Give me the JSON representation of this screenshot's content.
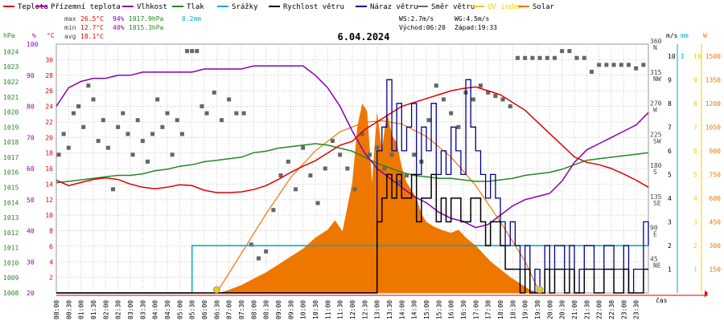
{
  "legend": [
    {
      "key": "teplota",
      "label": "Teplota",
      "color": "#dd0000"
    },
    {
      "key": "prizemni",
      "label": "Přízemní teplota",
      "color": "#bb00bb"
    },
    {
      "key": "vlhkost",
      "label": "Vlhkost",
      "color": "#8800aa"
    },
    {
      "key": "tlak",
      "label": "Tlak",
      "color": "#228822"
    },
    {
      "key": "srazky",
      "label": "Srážky",
      "color": "#00aacc"
    },
    {
      "key": "rychlost",
      "label": "Rychlost větru",
      "color": "#000000"
    },
    {
      "key": "naraz",
      "label": "Náraz větru",
      "color": "#000088"
    },
    {
      "key": "smer",
      "label": "Směr větru",
      "color": "#666666"
    },
    {
      "key": "uv",
      "label": "UV index",
      "color": "#e8d000"
    },
    {
      "key": "solar",
      "label": "Solar",
      "color": "#ee7700"
    }
  ],
  "stats": {
    "max_label": "max",
    "max_temp": "26.5°C",
    "max_hum": "94%",
    "max_press": "1017.9hPa",
    "max_rain": "0.2mm",
    "min_label": "min",
    "min_temp": "12.7°C",
    "min_hum": "40%",
    "min_press": "1015.3hPa",
    "avg_label": "avg",
    "avg_temp": "18.1°C"
  },
  "wind_info": {
    "ws": "WS:2.7m/s",
    "wg": "WG:4.5m/s",
    "sunrise": "Východ:06:20",
    "sunset": "Západ:19:33"
  },
  "title": "6.04.2024",
  "colors": {
    "temp": "#dd0000",
    "humidity": "#8800aa",
    "pressure": "#228822",
    "rain": "#00aacc",
    "wind": "#000000",
    "gust": "#000088",
    "direction": "#666666",
    "uv": "#e8d000",
    "solar": "#ee7700",
    "grid": "#c8c8c8",
    "axis": "#dd0000"
  },
  "chart_data": {
    "type": "line",
    "title": "6.04.2024",
    "x_time_labels": [
      "00:00",
      "00:30",
      "01:00",
      "01:30",
      "02:00",
      "02:30",
      "03:00",
      "03:30",
      "04:00",
      "04:30",
      "05:00",
      "05:30",
      "06:00",
      "06:30",
      "07:00",
      "07:30",
      "08:00",
      "08:30",
      "09:00",
      "09:30",
      "10:00",
      "10:30",
      "11:00",
      "11:30",
      "12:00",
      "12:30",
      "13:00",
      "13:30",
      "14:00",
      "14:30",
      "15:00",
      "15:30",
      "16:00",
      "16:30",
      "17:00",
      "17:30",
      "18:00",
      "18:30",
      "19:00",
      "19:30",
      "20:00",
      "20:30",
      "21:00",
      "21:30",
      "22:00",
      "22:30",
      "23:00",
      "23:30"
    ],
    "xlabel": "čas",
    "axes": {
      "pressure": {
        "unit": "hPa",
        "ticks": [
          "1008",
          "1009",
          "1010",
          "1011",
          "1012",
          "1013",
          "1014",
          "1015",
          "1016",
          "1017",
          "1018",
          "1019",
          "1020",
          "1021",
          "1022",
          "1023",
          "1024"
        ],
        "range": [
          1008,
          1024.5
        ]
      },
      "humidity": {
        "unit": "%",
        "ticks": [
          "20",
          "30",
          "40",
          "50",
          "60",
          "70",
          "80",
          "90",
          "100"
        ],
        "range": [
          20,
          100
        ]
      },
      "temperature": {
        "unit": "°C",
        "ticks": [
          "2",
          "4",
          "6",
          "8",
          "10",
          "12",
          "14",
          "16",
          "18",
          "20",
          "22",
          "24",
          "26",
          "28",
          "30"
        ],
        "range": [
          0,
          32
        ]
      },
      "direction": {
        "unit": "°",
        "ticks": [
          {
            "v": "360",
            "d": "N"
          },
          {
            "v": "315",
            "d": "NW"
          },
          {
            "v": "270",
            "d": "W"
          },
          {
            "v": "225",
            "d": "SW"
          },
          {
            "v": "180",
            "d": "S"
          },
          {
            "v": "135",
            "d": "SE"
          },
          {
            "v": "90",
            "d": "E"
          },
          {
            "v": "45",
            "d": "NE"
          }
        ],
        "range": [
          0,
          360
        ]
      },
      "wind": {
        "unit": "m/s",
        "ticks": [
          "1",
          "2",
          "3",
          "4",
          "5",
          "6",
          "7",
          "8",
          "9",
          "10"
        ],
        "range": [
          0,
          10.5
        ]
      },
      "rain": {
        "unit": "mm",
        "ticks": [
          "1"
        ],
        "range": [
          0,
          1.05
        ]
      },
      "uv": {
        "unit": "UV",
        "ticks": [
          "1",
          "2",
          "3",
          "4",
          "5",
          "6",
          "7",
          "8",
          "9",
          "10"
        ],
        "range": [
          0,
          10.5
        ]
      },
      "solar": {
        "unit": "W",
        "ticks": [
          "150",
          "300",
          "450",
          "600",
          "750",
          "900",
          "1050",
          "1200",
          "1350",
          "1500"
        ],
        "range": [
          0,
          1575
        ]
      }
    },
    "series": [
      {
        "name": "Teplota",
        "axis": "temperature",
        "h": [
          0,
          0.5,
          1,
          1.5,
          2,
          2.5,
          3,
          3.5,
          4,
          4.5,
          5,
          5.5,
          6,
          6.5,
          7,
          7.5,
          8,
          8.5,
          9,
          9.5,
          10,
          10.5,
          11,
          11.5,
          12,
          12.5,
          13,
          13.5,
          14,
          14.5,
          15,
          15.5,
          16,
          16.5,
          17,
          17.5,
          18,
          18.5,
          19,
          19.5,
          20,
          20.5,
          21,
          21.5,
          22,
          22.5,
          23,
          23.5,
          24
        ],
        "values": [
          14.5,
          13.8,
          14.2,
          14.6,
          14.8,
          14.6,
          14.0,
          13.6,
          13.4,
          13.6,
          13.9,
          13.8,
          13.2,
          12.9,
          12.9,
          13.0,
          13.3,
          13.8,
          14.6,
          15.5,
          16.3,
          17.0,
          18.0,
          19.0,
          19.5,
          21.0,
          22.0,
          23.0,
          24.0,
          24.5,
          25.0,
          25.5,
          26.0,
          26.3,
          26.5,
          26.0,
          25.5,
          24.5,
          23.5,
          22.0,
          20.5,
          19.0,
          17.5,
          16.8,
          16.5,
          16.0,
          15.3,
          14.5,
          13.6
        ]
      },
      {
        "name": "Vlhkost",
        "axis": "humidity",
        "h": [
          0,
          0.5,
          1,
          1.5,
          2,
          2.5,
          3,
          3.5,
          4,
          4.5,
          5,
          5.5,
          6,
          6.5,
          7,
          7.5,
          8,
          8.5,
          9,
          9.5,
          10,
          10.5,
          11,
          11.5,
          12,
          12.5,
          13,
          13.5,
          14,
          14.5,
          15,
          15.5,
          16,
          16.5,
          17,
          17.5,
          18,
          18.5,
          19,
          19.5,
          20,
          20.5,
          21,
          21.5,
          22,
          22.5,
          23,
          23.5,
          24
        ],
        "values": [
          80,
          86,
          88,
          89,
          89,
          90,
          90,
          91,
          91,
          91,
          91,
          91,
          92,
          92,
          92,
          92,
          93,
          93,
          93,
          93,
          93,
          90,
          86,
          80,
          72,
          65,
          60,
          57,
          54,
          51,
          49,
          46,
          44,
          43,
          41,
          42,
          45,
          48,
          50,
          51,
          52,
          56,
          62,
          66,
          68,
          70,
          72,
          74,
          78
        ]
      },
      {
        "name": "Tlak",
        "axis": "pressure",
        "h": [
          0,
          0.5,
          1,
          1.5,
          2,
          2.5,
          3,
          3.5,
          4,
          4.5,
          5,
          5.5,
          6,
          6.5,
          7,
          7.5,
          8,
          8.5,
          9,
          9.5,
          10,
          10.5,
          11,
          11.5,
          12,
          12.5,
          13,
          13.5,
          14,
          14.5,
          15,
          15.5,
          16,
          16.5,
          17,
          17.5,
          18,
          18.5,
          19,
          19.5,
          20,
          20.5,
          21,
          21.5,
          22,
          22.5,
          23,
          23.5,
          24
        ],
        "values": [
          1015.3,
          1015.4,
          1015.5,
          1015.6,
          1015.7,
          1015.8,
          1015.8,
          1015.9,
          1016.1,
          1016.2,
          1016.4,
          1016.5,
          1016.7,
          1016.8,
          1016.9,
          1017.0,
          1017.3,
          1017.4,
          1017.6,
          1017.7,
          1017.8,
          1017.9,
          1017.8,
          1017.6,
          1017.4,
          1017.0,
          1016.6,
          1016.3,
          1016.0,
          1015.8,
          1015.7,
          1015.6,
          1015.6,
          1015.5,
          1015.4,
          1015.4,
          1015.5,
          1015.6,
          1015.8,
          1015.9,
          1016.0,
          1016.2,
          1016.5,
          1016.8,
          1016.9,
          1017.0,
          1017.1,
          1017.2,
          1017.3
        ]
      },
      {
        "name": "Srážky",
        "axis": "rain",
        "note": "cumulative",
        "h": [
          0,
          5.45,
          5.5,
          24
        ],
        "values": [
          0,
          0,
          0.2,
          0.2
        ]
      },
      {
        "name": "Rychlost větru",
        "axis": "wind",
        "h": [
          0,
          12.8,
          13.0,
          13.2,
          13.4,
          13.6,
          13.8,
          14.0,
          14.2,
          14.4,
          14.6,
          14.8,
          15.0,
          15.2,
          15.4,
          15.6,
          15.8,
          16.0,
          16.2,
          16.4,
          16.6,
          16.8,
          17.0,
          17.2,
          17.4,
          17.6,
          17.8,
          18.0,
          18.2,
          18.4,
          18.6,
          18.8,
          19.0,
          19.2,
          19.4,
          19.6,
          19.8,
          20.0,
          20.2,
          20.4,
          20.6,
          20.8,
          21.0,
          21.2,
          21.4,
          21.6,
          21.8,
          22.0,
          22.2,
          22.4,
          22.6,
          22.8,
          23.0,
          23.2,
          23.4,
          23.6,
          23.8,
          24.0
        ],
        "values": [
          0,
          0,
          3,
          4,
          5,
          4,
          5,
          4,
          4,
          5,
          3,
          4,
          4,
          5,
          3,
          4,
          3,
          4,
          4,
          3,
          3,
          4,
          4,
          3,
          2,
          3,
          3,
          2,
          1,
          1,
          1,
          0,
          1,
          0,
          0,
          0,
          1,
          0,
          1,
          1,
          0,
          1,
          0,
          0,
          1,
          1,
          0,
          0,
          1,
          1,
          0,
          0,
          1,
          0,
          0,
          0,
          1,
          1
        ]
      },
      {
        "name": "Náraz větru",
        "axis": "wind",
        "h": [
          0,
          12.8,
          13.0,
          13.2,
          13.4,
          13.6,
          13.8,
          14.0,
          14.2,
          14.4,
          14.6,
          14.8,
          15.0,
          15.2,
          15.4,
          15.6,
          15.8,
          16.0,
          16.2,
          16.4,
          16.6,
          16.8,
          17.0,
          17.2,
          17.4,
          17.6,
          17.8,
          18.0,
          18.2,
          18.4,
          18.6,
          18.8,
          19.0,
          19.2,
          19.4,
          19.6,
          19.8,
          20.0,
          20.2,
          20.4,
          20.6,
          20.8,
          21.0,
          21.2,
          21.4,
          21.6,
          21.8,
          22.0,
          22.2,
          22.4,
          22.6,
          22.8,
          23.0,
          23.2,
          23.4,
          23.6,
          23.8,
          24.0
        ],
        "values": [
          0,
          0,
          6,
          7,
          9,
          6,
          8,
          6,
          7,
          8,
          5,
          7,
          6,
          8,
          5,
          6,
          5,
          7,
          6,
          5,
          9,
          7,
          6,
          5,
          4,
          5,
          4,
          3,
          2,
          3,
          2,
          1,
          2,
          0,
          1,
          0,
          2,
          1,
          2,
          2,
          1,
          2,
          0,
          1,
          2,
          2,
          1,
          1,
          2,
          2,
          1,
          1,
          2,
          0,
          1,
          1,
          3,
          2
        ]
      },
      {
        "name": "Solar",
        "axis": "solar",
        "h": [
          0,
          6.6,
          7.0,
          7.5,
          8.0,
          8.5,
          9.0,
          9.5,
          10.0,
          10.5,
          11.0,
          11.3,
          11.6,
          12.0,
          12.2,
          12.4,
          12.6,
          12.8,
          13.0,
          13.2,
          13.4,
          13.6,
          13.8,
          14.0,
          14.2,
          14.4,
          14.6,
          14.8,
          15.0,
          15.3,
          15.6,
          16.0,
          16.3,
          16.6,
          17.0,
          17.3,
          17.6,
          18.0,
          18.4,
          18.8,
          19.2,
          19.6,
          24
        ],
        "values": [
          0,
          0,
          20,
          50,
          90,
          130,
          180,
          230,
          280,
          350,
          400,
          460,
          390,
          700,
          1050,
          1200,
          1150,
          700,
          1150,
          900,
          1150,
          1000,
          950,
          800,
          700,
          650,
          600,
          500,
          450,
          420,
          400,
          380,
          400,
          350,
          300,
          250,
          200,
          150,
          100,
          60,
          20,
          0,
          0
        ]
      },
      {
        "name": "Solar_clear",
        "axis": "solar",
        "h": [
          6.5,
          7.5,
          8.5,
          9.5,
          10.5,
          11.5,
          12.5,
          13.2,
          14,
          15,
          16,
          17,
          18,
          19,
          19.6
        ],
        "values": [
          0,
          250,
          500,
          730,
          900,
          1020,
          1080,
          1090,
          1070,
          990,
          860,
          680,
          450,
          200,
          0
        ]
      },
      {
        "name": "UV index",
        "axis": "uv",
        "h": [
          6.5,
          19.6
        ],
        "values": [
          0,
          0
        ]
      }
    ],
    "direction_points": {
      "axis": "direction",
      "h": [
        0.1,
        0.3,
        0.5,
        0.7,
        0.9,
        1.1,
        1.3,
        1.5,
        1.7,
        1.9,
        2.1,
        2.3,
        2.5,
        2.7,
        2.9,
        3.1,
        3.3,
        3.5,
        3.7,
        3.9,
        4.1,
        4.3,
        4.5,
        4.7,
        4.9,
        5.1,
        5.3,
        5.5,
        5.7,
        5.9,
        6.1,
        6.4,
        6.7,
        7.0,
        7.3,
        7.6,
        7.9,
        8.2,
        8.5,
        8.8,
        9.1,
        9.4,
        9.7,
        10.0,
        10.3,
        10.6,
        10.9,
        11.2,
        11.5,
        11.8,
        12.1,
        12.4,
        12.7,
        13.0,
        13.3,
        13.6,
        13.9,
        14.2,
        14.5,
        14.8,
        15.1,
        15.4,
        15.7,
        16.0,
        16.3,
        16.6,
        16.9,
        17.2,
        17.5,
        17.8,
        18.1,
        18.4,
        18.7,
        19.0,
        19.3,
        19.6,
        19.9,
        20.2,
        20.5,
        20.8,
        21.1,
        21.4,
        21.7,
        22.0,
        22.3,
        22.6,
        22.9,
        23.2,
        23.5,
        23.8
      ],
      "values": [
        200,
        230,
        210,
        260,
        270,
        240,
        300,
        280,
        220,
        250,
        210,
        150,
        240,
        260,
        230,
        200,
        250,
        220,
        190,
        230,
        280,
        240,
        260,
        200,
        250,
        230,
        350,
        350,
        350,
        270,
        260,
        290,
        250,
        280,
        260,
        260,
        70,
        50,
        60,
        120,
        170,
        190,
        150,
        210,
        170,
        130,
        180,
        220,
        200,
        180,
        150,
        230,
        200,
        210,
        180,
        200,
        160,
        170,
        200,
        190,
        250,
        300,
        280,
        260,
        240,
        290,
        280,
        300,
        290,
        285,
        280,
        270,
        340,
        340,
        340,
        340,
        340,
        340,
        350,
        350,
        340,
        340,
        320,
        330,
        330,
        330,
        330,
        330,
        325,
        330
      ]
    },
    "ylim": [
      0,
      32
    ],
    "legend_position": "top",
    "grid": true
  }
}
